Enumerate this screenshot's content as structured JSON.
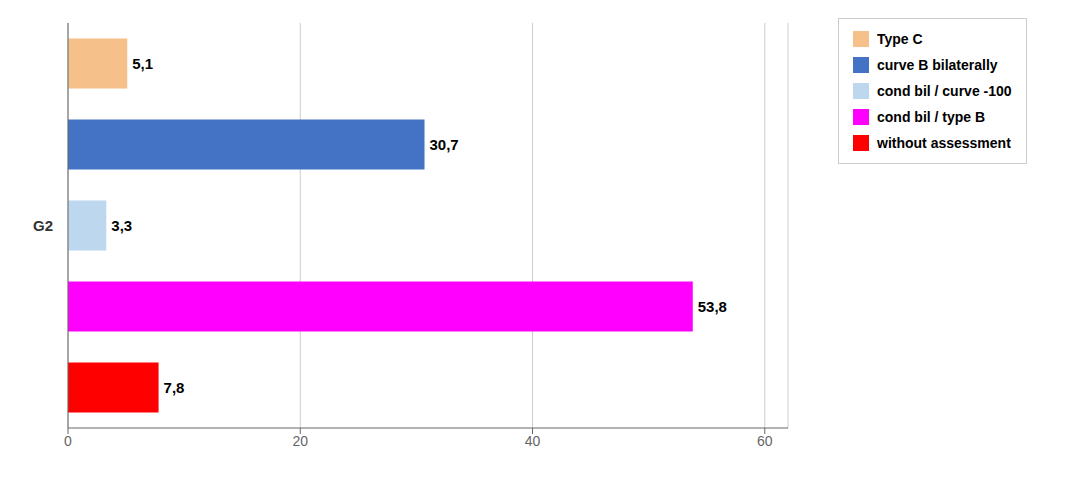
{
  "chart_data": {
    "type": "bar",
    "orientation": "horizontal",
    "categories": [
      "Type C",
      "curve B bilaterally",
      "cond bil / curve -100",
      "cond bil / type B",
      "without assessment"
    ],
    "values": [
      5.1,
      30.7,
      3.3,
      53.8,
      7.8
    ],
    "value_labels": [
      "5,1",
      "30,7",
      "3,3",
      "53,8",
      "7,8"
    ],
    "data_labels": true,
    "colors": [
      "#F5C08A",
      "#4472C4",
      "#BDD7EE",
      "#FF00FF",
      "#FF0000"
    ],
    "ylabel": "G2",
    "xlim": [
      0,
      62
    ],
    "xticks": [
      0,
      20,
      40,
      60
    ],
    "grid": true,
    "legend": "right",
    "tick_labels": "x"
  }
}
